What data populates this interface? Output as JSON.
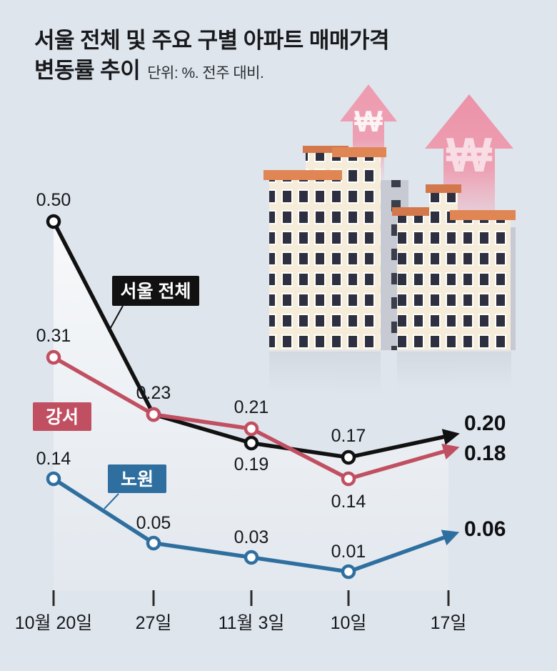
{
  "header": {
    "title_line1": "서울 전체 및 주요 구별 아파트 매매가격",
    "title_line2": "변동률 추이",
    "subtitle": "단위: %. 전주 대비."
  },
  "illustration": {
    "won_symbol_small": "₩",
    "won_symbol_large": "₩"
  },
  "chart_data": {
    "type": "line",
    "title": "서울 전체 및 주요 구별 아파트 매매가격 변동률 추이",
    "unit_note": "단위: %. 전주 대비.",
    "categories": [
      "10월 20일",
      "27일",
      "11월 3일",
      "10일",
      "17일"
    ],
    "series": [
      {
        "id": "seoul-total",
        "name": "서울 전체",
        "color": "#111111",
        "values": [
          0.5,
          0.23,
          0.19,
          0.17,
          0.2
        ]
      },
      {
        "id": "gangseo",
        "name": "강서",
        "color": "#c14f62",
        "values": [
          0.31,
          0.23,
          0.21,
          0.14,
          0.18
        ]
      },
      {
        "id": "nowon",
        "name": "노원",
        "color": "#2f6f9f",
        "values": [
          0.14,
          0.05,
          0.03,
          0.01,
          0.06
        ]
      }
    ],
    "end_labels": [
      "0.20",
      "0.18",
      "0.06"
    ],
    "ylim": [
      0,
      0.55
    ],
    "grid": false,
    "legend_position": "inline-labels"
  },
  "colors": {
    "background": "#dfe5ec",
    "arrow_pink": "#ee9cb0",
    "roof_orange": "#e08554",
    "facade_cream": "#f5edda",
    "window_dark": "#2e3040"
  }
}
